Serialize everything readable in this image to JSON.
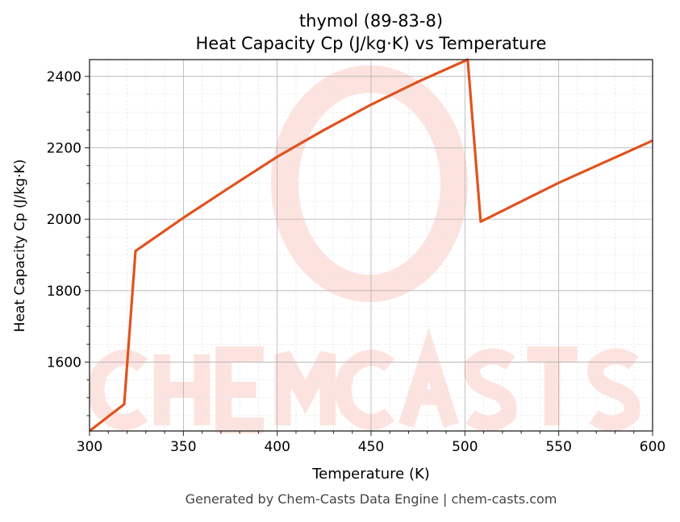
{
  "chart_data": {
    "type": "line",
    "title": "thymol (89-83-8)",
    "subtitle": "Heat Capacity Cp (J/kg·K) vs Temperature",
    "xlabel": "Temperature (K)",
    "ylabel": "Heat Capacity Cp (J/kg·K)",
    "xlim": [
      300,
      600
    ],
    "ylim": [
      1407,
      2447
    ],
    "xticks": [
      300,
      350,
      400,
      450,
      500,
      550,
      600
    ],
    "yticks": [
      1600,
      1800,
      2000,
      2200,
      2400
    ],
    "grid": true,
    "series": [
      {
        "color": "#e0531f",
        "x": [
          300,
          318.5,
          324.5,
          350,
          375,
          400,
          425,
          450,
          475,
          501.5,
          508.4,
          550,
          600
        ],
        "y": [
          1407,
          1482,
          1911,
          2004,
          2090,
          2175,
          2250,
          2321,
          2385,
          2447,
          1993,
          2102,
          2220
        ]
      }
    ],
    "watermark": "CHEMCASTS"
  },
  "footer": "Generated by Chem-Casts Data Engine | chem-casts.com"
}
